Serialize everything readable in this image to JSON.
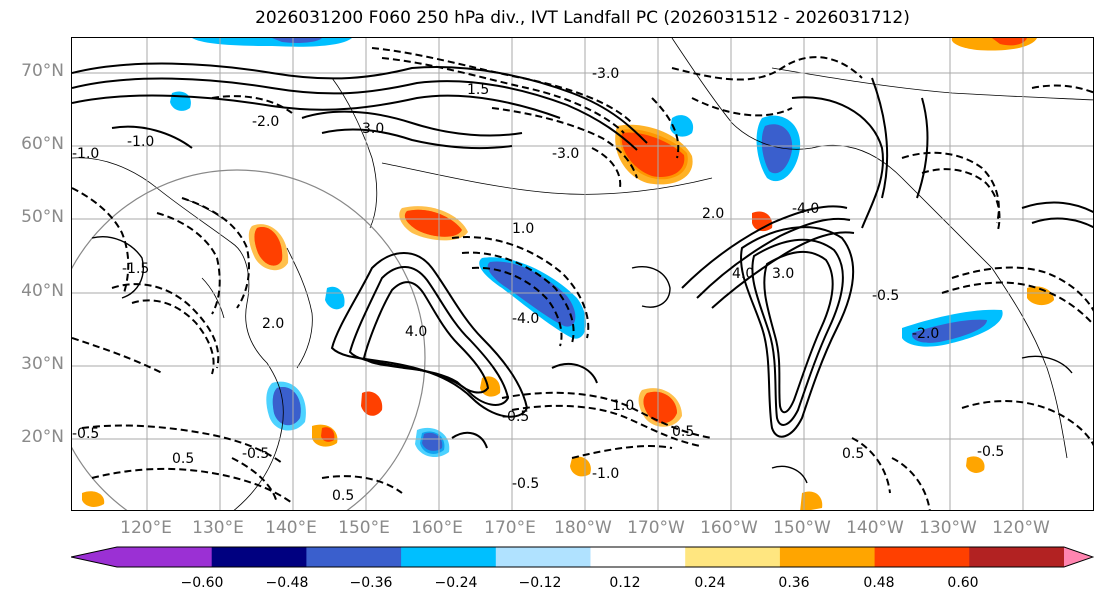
{
  "title": "2026031200 F060 250 hPa div., IVT Landfall PC (2026031512 - 2026031712)",
  "lat_labels": [
    "70°N",
    "60°N",
    "50°N",
    "40°N",
    "30°N",
    "20°N"
  ],
  "lon_labels": [
    "120°E",
    "130°E",
    "140°E",
    "150°E",
    "160°E",
    "170°E",
    "180°W",
    "170°W",
    "160°W",
    "150°W",
    "140°W",
    "130°W",
    "120°W"
  ],
  "contour_labels": [
    "-1.0",
    "-1.0",
    "-2.0",
    "-3.0",
    "-4.0",
    "-3.0",
    "-4.0",
    "-0.5",
    "-0.5",
    "-1.5",
    "-0.5",
    "-0.5",
    "0.5",
    "0.5",
    "1.0",
    "1.5",
    "2.0",
    "3.0",
    "4.0",
    "3.0",
    "4.0",
    "1.0",
    "2.0",
    "0.5",
    "-0.5",
    "-1.0",
    "-2.0",
    "-0.5",
    "0.5"
  ],
  "colorbar": {
    "ticks": [
      "−0.60",
      "−0.48",
      "−0.36",
      "−0.24",
      "−0.12",
      "0.12",
      "0.24",
      "0.36",
      "0.48",
      "0.60"
    ],
    "colors": [
      "#9b30d4",
      "#000080",
      "#3a5fcd",
      "#00bfff",
      "#b0e2ff",
      "#ffffff",
      "#ffe680",
      "#ffa500",
      "#ff4000",
      "#b22222",
      "#ff85b0"
    ]
  },
  "colors": {
    "axis_label": "#8a8a8a",
    "coast": "#000000",
    "grid": "#aaaaaa"
  }
}
